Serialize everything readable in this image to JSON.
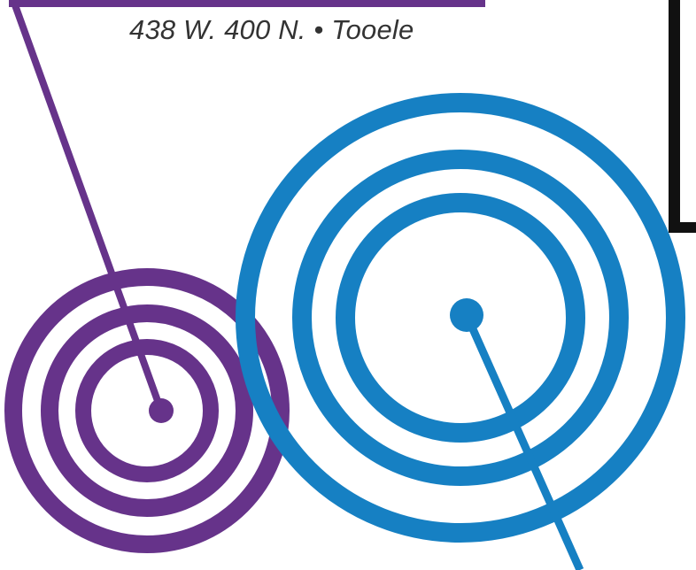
{
  "address": {
    "text": "438 W. 400 N. • Tooele"
  },
  "colors": {
    "purple": "#66338a",
    "blue": "#1680c3",
    "black": "#111111",
    "text": "#333333",
    "background": "#ffffff"
  },
  "graphics": {
    "purple_target": {
      "rings": 3,
      "icon": "concentric-target-icon"
    },
    "blue_target": {
      "rings": 3,
      "icon": "concentric-target-icon"
    }
  }
}
